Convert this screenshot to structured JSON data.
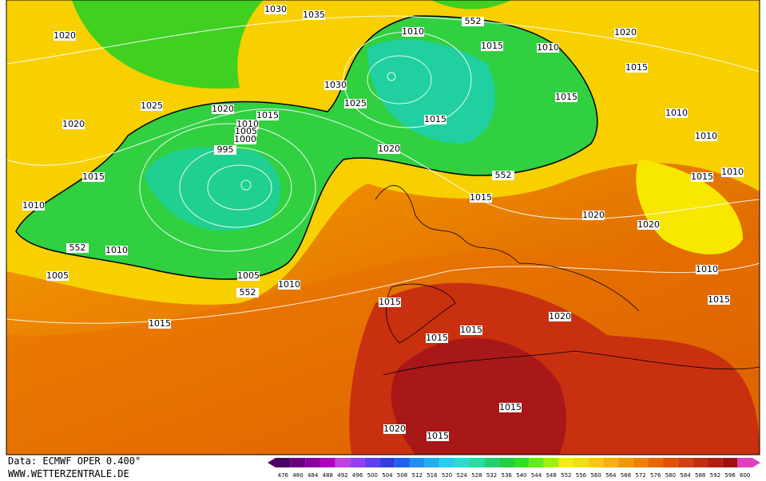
{
  "map": {
    "isobar_labels": [
      "1030",
      "1035",
      "1020",
      "1010",
      "552",
      "1020",
      "1015",
      "1010",
      "1015",
      "1030",
      "1025",
      "1015",
      "1025",
      "1020",
      "1015",
      "1010",
      "1005",
      "1000",
      "1020",
      "1015",
      "1010",
      "995",
      "1020",
      "1010",
      "1015",
      "552",
      "1015",
      "1010",
      "1015",
      "1010",
      "1020",
      "1020",
      "552",
      "1010",
      "1005",
      "1005",
      "1010",
      "552",
      "1010",
      "1015",
      "1015",
      "1020",
      "1015",
      "1015",
      "1015",
      "1015",
      "1020",
      "1015"
    ]
  },
  "footer": {
    "source": "Data: ECMWF OPER 0.400°",
    "site": "WWW.WETTERZENTRALE.DE"
  },
  "scale": {
    "labels": [
      476,
      480,
      484,
      488,
      492,
      496,
      500,
      504,
      508,
      512,
      516,
      520,
      524,
      528,
      532,
      536,
      540,
      544,
      548,
      552,
      556,
      560,
      564,
      568,
      572,
      576,
      580,
      584,
      588,
      592,
      596,
      600
    ],
    "colors": [
      "#4b0066",
      "#6a0080",
      "#8a00a0",
      "#b000c0",
      "#c040e0",
      "#9040f0",
      "#6040f0",
      "#3040e0",
      "#2060f0",
      "#2090f0",
      "#20b0f0",
      "#20d0f0",
      "#20e0d0",
      "#20e0a0",
      "#20d070",
      "#20d040",
      "#30e020",
      "#60f010",
      "#a0f000",
      "#f0f000",
      "#f0e000",
      "#f8c800",
      "#f8b000",
      "#f09800",
      "#f08000",
      "#e86800",
      "#e05000",
      "#d04010",
      "#c03010",
      "#b02010",
      "#a01010",
      "#e040c0"
    ]
  }
}
